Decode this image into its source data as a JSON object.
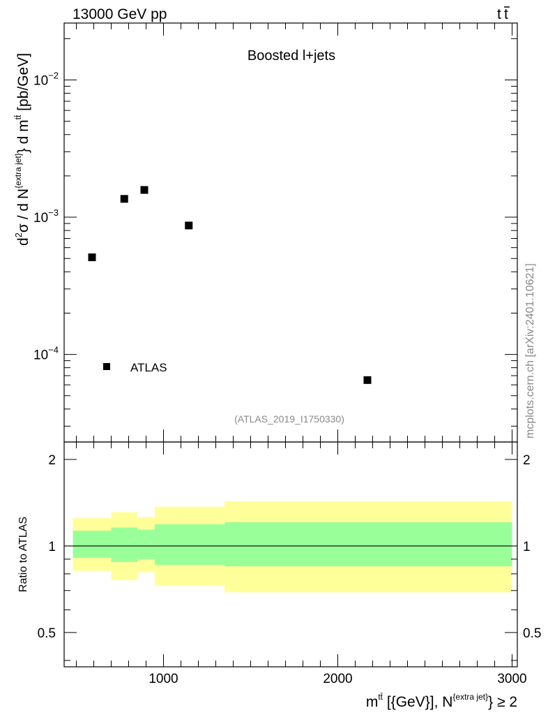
{
  "header": {
    "left": "13000 GeV pp",
    "right_base": "t",
    "right_bar": "t"
  },
  "watermark": {
    "side": "mcplots.cern.ch [arXiv:2401.10621]",
    "analysis": "(ATLAS_2019_I1750330)"
  },
  "colors": {
    "band_outer": "#ffff99",
    "band_inner": "#99ff99",
    "marker": "#000000",
    "watermark": "#888888"
  },
  "chart_data": [
    {
      "type": "scatter",
      "title": "Boosted l+jets",
      "ylabel": {
        "d": "d",
        "sup2": "2",
        "sigma_slash_d": "σ / d N",
        "sup_extra": "{extra jet}",
        "brace_d_m": "} d m",
        "sup_tt": "tt̄",
        "unit": " [pb/GeV]"
      },
      "yscale": "log",
      "ylim": [
        2.3e-05,
        0.026
      ],
      "xlim": [
        430,
        3030
      ],
      "y_ticks": [
        {
          "value": 0.0001,
          "base": "10",
          "exp": "−4"
        },
        {
          "value": 0.001,
          "base": "10",
          "exp": "−3"
        },
        {
          "value": 0.01,
          "base": "10",
          "exp": "−2"
        }
      ],
      "series": [
        {
          "name": "ATLAS",
          "marker": "square",
          "x": [
            590,
            775,
            890,
            1145,
            2170
          ],
          "y": [
            0.00051,
            0.00136,
            0.00158,
            0.00087,
            6.5e-05
          ]
        }
      ],
      "legend": "bottom-left"
    },
    {
      "type": "area",
      "ylabel": "Ratio to ATLAS",
      "ylim": [
        0.38,
        2.3
      ],
      "yscale": "log",
      "xlim": [
        430,
        3030
      ],
      "y_ticks": [
        {
          "value": 0.5,
          "label": "0.5"
        },
        {
          "value": 1,
          "label": "1"
        },
        {
          "value": 2,
          "label": "2"
        }
      ],
      "x_ticks": [
        {
          "value": 1000,
          "label": "1000"
        },
        {
          "value": 2000,
          "label": "2000"
        },
        {
          "value": 3000,
          "label": "3000"
        }
      ],
      "xlabel": {
        "m": "m",
        "sup_tt": "tt̄",
        "mid": " [{GeV}], N",
        "sup_extra": "{extra jet}",
        "end": "} ≥ 2"
      },
      "reference_line": 1,
      "bins": [
        {
          "x0": 480,
          "x1": 700,
          "outer": [
            0.82,
            1.25
          ],
          "inner": [
            0.91,
            1.13
          ]
        },
        {
          "x0": 700,
          "x1": 850,
          "outer": [
            0.76,
            1.31
          ],
          "inner": [
            0.88,
            1.16
          ]
        },
        {
          "x0": 850,
          "x1": 950,
          "outer": [
            0.81,
            1.26
          ],
          "inner": [
            0.9,
            1.14
          ]
        },
        {
          "x0": 950,
          "x1": 1350,
          "outer": [
            0.73,
            1.37
          ],
          "inner": [
            0.86,
            1.19
          ]
        },
        {
          "x0": 1350,
          "x1": 3000,
          "outer": [
            0.69,
            1.43
          ],
          "inner": [
            0.85,
            1.21
          ]
        }
      ]
    }
  ]
}
